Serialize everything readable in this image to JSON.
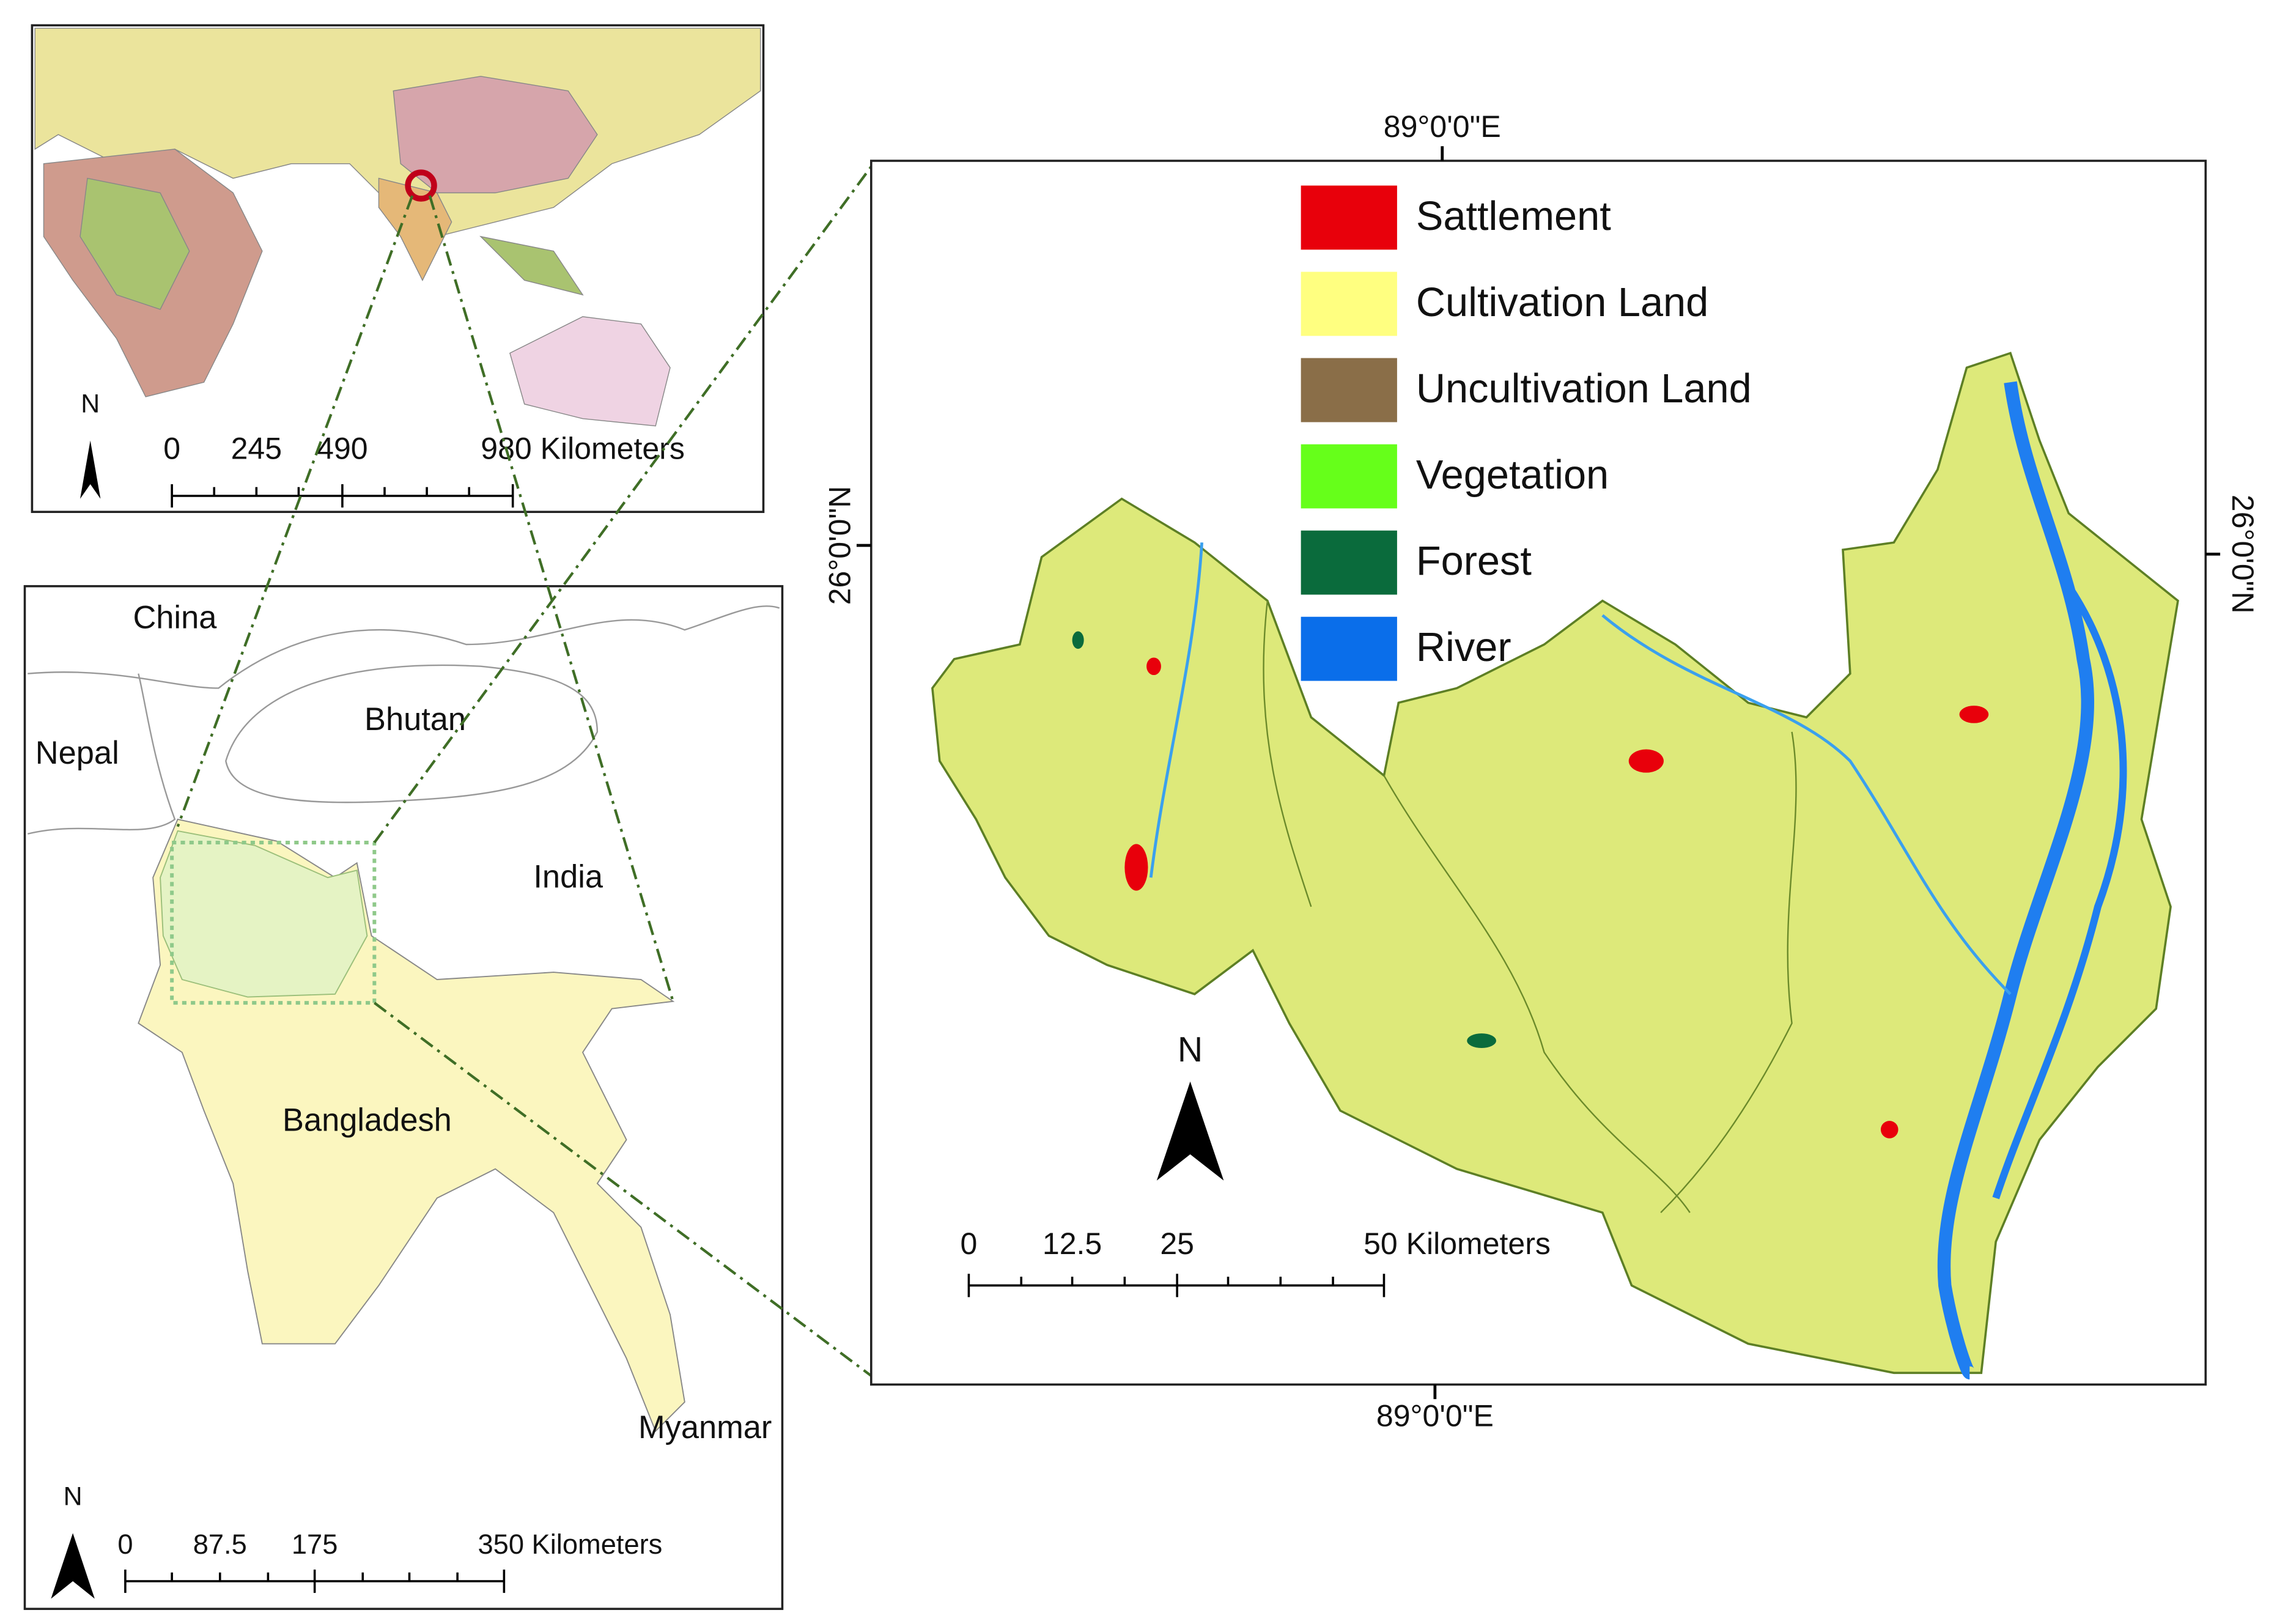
{
  "world_map": {
    "north": "N",
    "scale_labels": [
      "0",
      "245",
      "490",
      "980 Kilometers"
    ]
  },
  "region_map": {
    "countries": [
      "China",
      "Bhutan",
      "Nepal",
      "India",
      "Bangladesh",
      "Myanmar"
    ],
    "north": "N",
    "scale_labels": [
      "0",
      "87.5",
      "175",
      "350 Kilometers"
    ]
  },
  "study_map": {
    "legend": [
      {
        "label": "Sattlement",
        "color": "#e8000b"
      },
      {
        "label": "Cultivation Land",
        "color": "#ffff80"
      },
      {
        "label": "Uncultivation Land",
        "color": "#8a6e48"
      },
      {
        "label": "Vegetation",
        "color": "#66ff1a"
      },
      {
        "label": "Forest",
        "color": "#0a6b3c"
      },
      {
        "label": "River",
        "color": "#0a6eea"
      }
    ],
    "longitude_top": "89°0'0\"E",
    "longitude_bottom": "89°0'0\"E",
    "latitude_left": "26°0'0\"N",
    "latitude_right": "26°0'0\"N",
    "north": "N",
    "scale_labels": [
      "0",
      "12.5",
      "25",
      "50 Kilometers"
    ]
  }
}
